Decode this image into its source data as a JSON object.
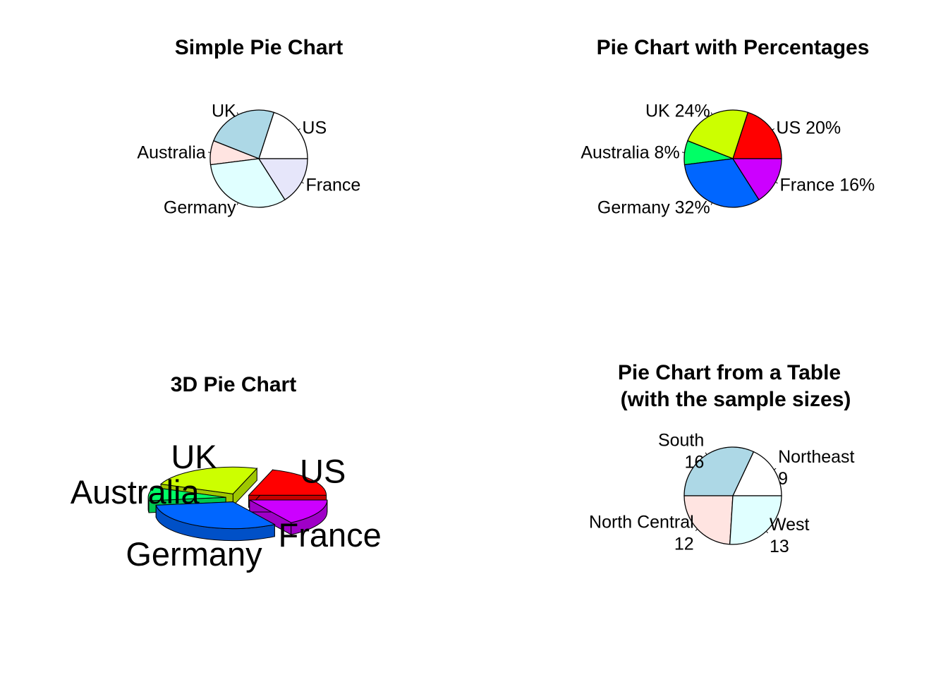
{
  "chart_data": [
    {
      "type": "pie",
      "title": "Simple Pie Chart",
      "categories": [
        "US",
        "UK",
        "Australia",
        "Germany",
        "France"
      ],
      "values": [
        10,
        12,
        4,
        16,
        8
      ],
      "labels": [
        "US",
        "UK",
        "Australia",
        "Germany",
        "France"
      ],
      "colors": [
        "#ffffff",
        "#add8e6",
        "#ffe4e1",
        "#e0ffff",
        "#e6e6fa"
      ]
    },
    {
      "type": "pie",
      "title": "Pie Chart with Percentages",
      "categories": [
        "US",
        "UK",
        "Australia",
        "Germany",
        "France"
      ],
      "values": [
        10,
        12,
        4,
        16,
        8
      ],
      "labels": [
        "US 20%",
        "UK 24%",
        "Australia 8%",
        "Germany 32%",
        "France 16%"
      ],
      "colors": [
        "#ff0000",
        "#ccff00",
        "#00ff66",
        "#0066ff",
        "#cc00ff"
      ]
    },
    {
      "type": "pie",
      "title": "3D Pie Chart",
      "categories": [
        "US",
        "UK",
        "Australia",
        "Germany",
        "France"
      ],
      "values": [
        10,
        12,
        4,
        16,
        8
      ],
      "labels": [
        "US",
        "UK",
        "Australia",
        "Germany",
        "France"
      ],
      "colors": [
        "#ff0000",
        "#ccff00",
        "#00ff66",
        "#0066ff",
        "#cc00ff"
      ],
      "three_d": true,
      "exploded": true
    },
    {
      "type": "pie",
      "title": [
        "Pie Chart from a Table",
        "(with the sample sizes)"
      ],
      "categories": [
        "Northeast",
        "South",
        "North Central",
        "West"
      ],
      "values": [
        9,
        16,
        12,
        13
      ],
      "labels": [
        [
          "Northeast",
          "9"
        ],
        [
          "South",
          "16"
        ],
        [
          "North Central",
          "12"
        ],
        [
          "West",
          "13"
        ]
      ],
      "colors": [
        "#ffffff",
        "#add8e6",
        "#ffe4e1",
        "#e0ffff"
      ]
    }
  ]
}
